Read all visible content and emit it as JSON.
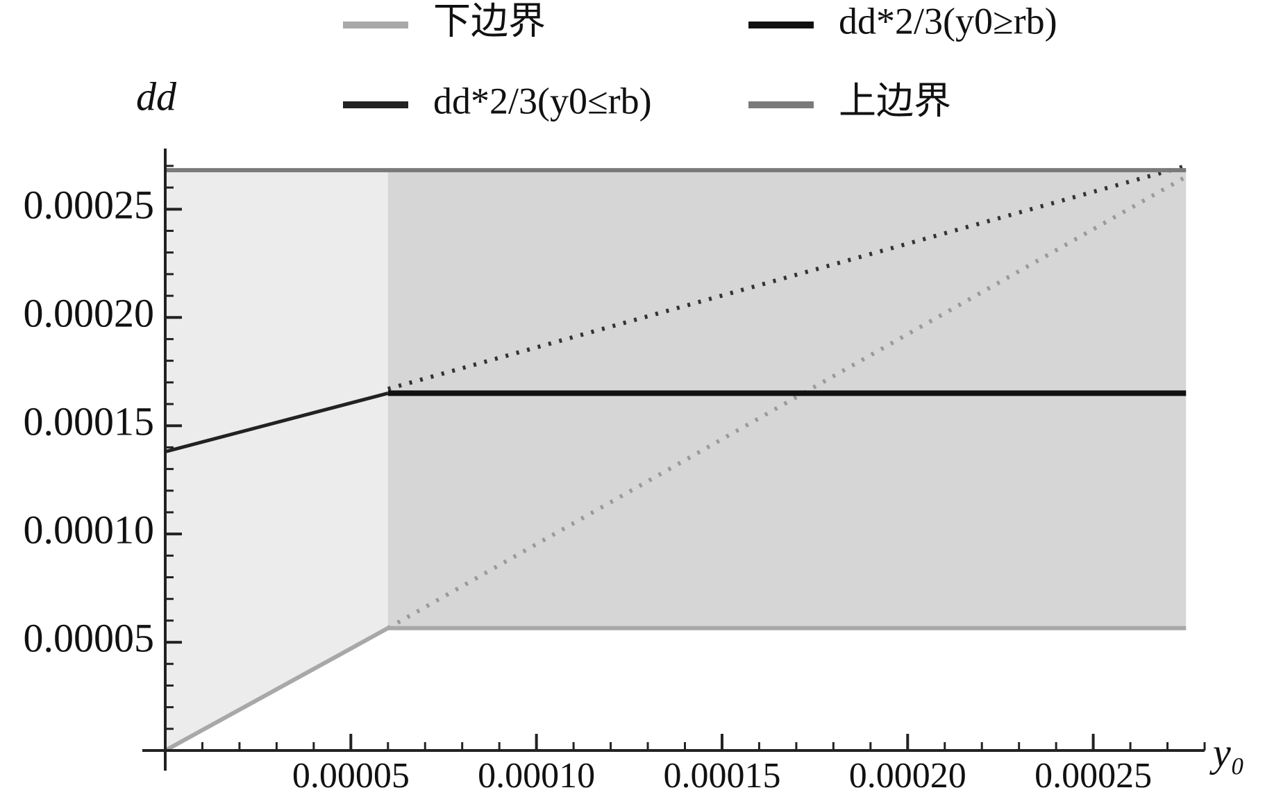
{
  "chart_data": {
    "type": "line",
    "x_label": "y₀",
    "y_label": "dd",
    "xlim": [
      0,
      0.00028
    ],
    "ylim": [
      0,
      0.000278
    ],
    "xticks": [
      5e-05,
      {
        "value": 0.0001,
        "label": "0.00010"
      },
      0.00015,
      {
        "value": 0.0002,
        "label": "0.00020"
      },
      0.00025
    ],
    "yticks": [
      5e-05,
      {
        "value": 0.0001,
        "label": "0.00010"
      },
      0.00015,
      {
        "value": 0.0002,
        "label": "0.00020"
      },
      0.00025
    ],
    "regions": [
      {
        "color": "#ececec",
        "x": [
          0,
          6e-05
        ],
        "lower": [
          0,
          5.65e-05
        ],
        "upper": [
          0.000268,
          0.000268
        ]
      },
      {
        "color": "#d6d6d6",
        "x": [
          6e-05,
          0.000275
        ],
        "lower": [
          5.65e-05,
          5.65e-05
        ],
        "upper": [
          0.000268,
          0.000268
        ]
      }
    ],
    "series": [
      {
        "name": "下边界",
        "color": "#a8a8a8",
        "width": 6,
        "x": [
          0,
          6e-05,
          0.000275
        ],
        "values": [
          0,
          5.65e-05,
          5.65e-05
        ]
      },
      {
        "name": "dd*2/3(y0≥rb)",
        "color": "#111111",
        "width": 8,
        "x": [
          6e-05,
          0.000275
        ],
        "values": [
          0.000165,
          0.000165
        ]
      },
      {
        "name": "dd*2/3(y0≤rb)",
        "color": "#222222",
        "width": 5,
        "x": [
          0,
          6e-05
        ],
        "values": [
          0.000138,
          0.000165
        ]
      },
      {
        "name": "上边界",
        "color": "#7a7a7a",
        "width": 6,
        "x": [
          0,
          0.000275
        ],
        "values": [
          0.000268,
          0.000268
        ]
      }
    ],
    "guides": [
      {
        "color": "#333333",
        "x": [
          6e-05,
          0.000275
        ],
        "values": [
          0.000167,
          0.00027
        ]
      },
      {
        "color": "#9a9a9a",
        "x": [
          6e-05,
          0.000275
        ],
        "values": [
          5.65e-05,
          0.000265
        ]
      }
    ]
  }
}
